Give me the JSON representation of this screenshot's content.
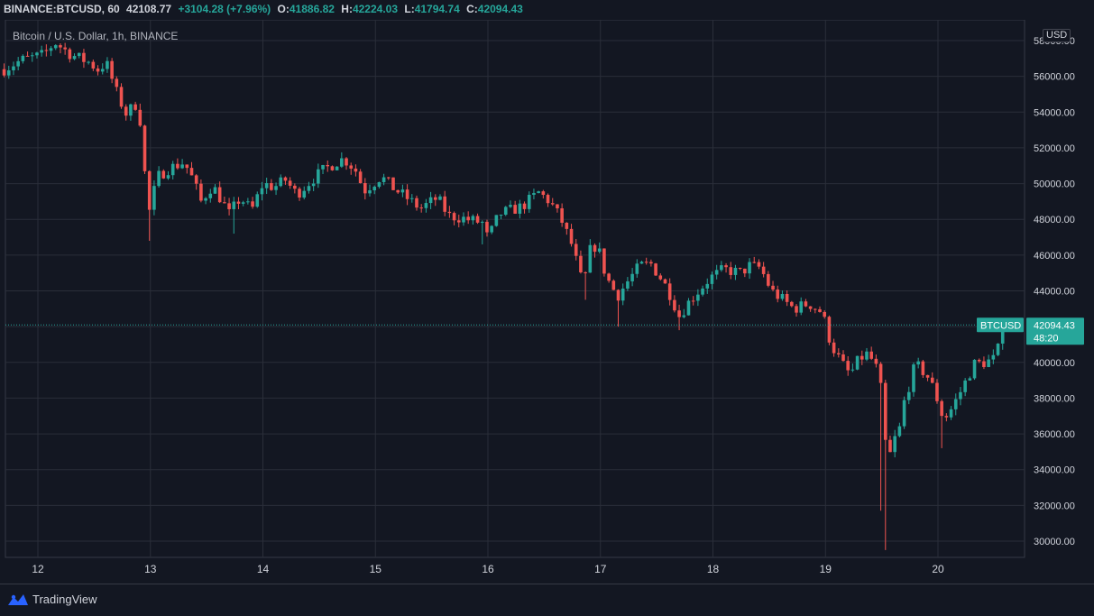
{
  "header": {
    "symbol": "BINANCE:BTCUSD, 60",
    "last": "42108.77",
    "change": "+3104.28 (+7.96%)",
    "o_label": "O:",
    "o_value": "41886.82",
    "h_label": "H:",
    "h_value": "42224.03",
    "l_label": "L:",
    "l_value": "41794.74",
    "c_label": "C:",
    "c_value": "42094.43"
  },
  "chart_title": "Bitcoin / U.S. Dollar, 1h, BINANCE",
  "unit_label": "USD",
  "price_tag": {
    "symbol": "BTCUSD",
    "price": "42094.43",
    "countdown": "48:20"
  },
  "footer": {
    "brand": "TradingView"
  },
  "colors": {
    "up": "#26a69a",
    "down": "#ef5350",
    "background": "#131722",
    "grid": "#2a2e39",
    "text": "#d1d4dc"
  },
  "chart_data": {
    "type": "candlestick",
    "title": "Bitcoin / U.S. Dollar, 1h, BINANCE",
    "ylabel": "USD",
    "ylim": [
      29000,
      59000
    ],
    "y_ticks": [
      "30000.00",
      "32000.00",
      "34000.00",
      "36000.00",
      "38000.00",
      "40000.00",
      "42000.00",
      "44000.00",
      "46000.00",
      "48000.00",
      "50000.00",
      "52000.00",
      "54000.00",
      "56000.00",
      "58000.00"
    ],
    "x_ticks": [
      {
        "label": "12",
        "day": 12
      },
      {
        "label": "13",
        "day": 13
      },
      {
        "label": "14",
        "day": 14
      },
      {
        "label": "15",
        "day": 15
      },
      {
        "label": "16",
        "day": 16
      },
      {
        "label": "17",
        "day": 17
      },
      {
        "label": "18",
        "day": 18
      },
      {
        "label": "19",
        "day": 19
      },
      {
        "label": "20",
        "day": 20
      }
    ],
    "start_day": 11.7,
    "end_day": 20.58,
    "current_price": 42094.43,
    "path": [
      [
        11.7,
        56400
      ],
      [
        11.85,
        56900
      ],
      [
        12.05,
        57200
      ],
      [
        12.15,
        57900
      ],
      [
        12.3,
        57200
      ],
      [
        12.45,
        56800
      ],
      [
        12.55,
        56300
      ],
      [
        12.6,
        56900
      ],
      [
        12.7,
        55100
      ],
      [
        12.78,
        53900
      ],
      [
        12.88,
        54500
      ],
      [
        12.93,
        52800
      ],
      [
        12.96,
        49500
      ],
      [
        13.0,
        48200
      ],
      [
        13.05,
        50300
      ],
      [
        13.15,
        50800
      ],
      [
        13.3,
        51200
      ],
      [
        13.38,
        50200
      ],
      [
        13.45,
        49000
      ],
      [
        13.55,
        49900
      ],
      [
        13.62,
        49200
      ],
      [
        13.7,
        48300
      ],
      [
        13.8,
        49200
      ],
      [
        13.9,
        48500
      ],
      [
        14.0,
        50000
      ],
      [
        14.1,
        49800
      ],
      [
        14.2,
        50200
      ],
      [
        14.3,
        49400
      ],
      [
        14.45,
        50300
      ],
      [
        14.55,
        50800
      ],
      [
        14.65,
        51200
      ],
      [
        14.72,
        51400
      ],
      [
        14.82,
        50800
      ],
      [
        14.9,
        49600
      ],
      [
        15.05,
        50400
      ],
      [
        15.15,
        49800
      ],
      [
        15.3,
        49100
      ],
      [
        15.4,
        48600
      ],
      [
        15.55,
        49200
      ],
      [
        15.65,
        48200
      ],
      [
        15.75,
        48100
      ],
      [
        15.95,
        47800
      ],
      [
        16.0,
        46900
      ],
      [
        16.1,
        48300
      ],
      [
        16.3,
        48700
      ],
      [
        16.45,
        49500
      ],
      [
        16.55,
        49000
      ],
      [
        16.65,
        48000
      ],
      [
        16.75,
        46500
      ],
      [
        16.8,
        45300
      ],
      [
        16.85,
        44200
      ],
      [
        16.9,
        46200
      ],
      [
        16.97,
        46600
      ],
      [
        17.05,
        44800
      ],
      [
        17.15,
        43700
      ],
      [
        17.25,
        44600
      ],
      [
        17.35,
        45400
      ],
      [
        17.45,
        45500
      ],
      [
        17.55,
        44600
      ],
      [
        17.62,
        43800
      ],
      [
        17.7,
        42600
      ],
      [
        17.8,
        43500
      ],
      [
        17.9,
        44200
      ],
      [
        17.97,
        44700
      ],
      [
        18.1,
        45200
      ],
      [
        18.25,
        45000
      ],
      [
        18.32,
        45400
      ],
      [
        18.42,
        45300
      ],
      [
        18.52,
        44000
      ],
      [
        18.62,
        43500
      ],
      [
        18.72,
        43000
      ],
      [
        18.85,
        43300
      ],
      [
        18.97,
        42800
      ],
      [
        19.05,
        41000
      ],
      [
        19.15,
        39900
      ],
      [
        19.22,
        39300
      ],
      [
        19.3,
        40200
      ],
      [
        19.38,
        40500
      ],
      [
        19.45,
        39700
      ],
      [
        19.5,
        38300
      ],
      [
        19.55,
        34100
      ],
      [
        19.6,
        35600
      ],
      [
        19.65,
        36000
      ],
      [
        19.7,
        37800
      ],
      [
        19.8,
        39900
      ],
      [
        19.9,
        39300
      ],
      [
        19.97,
        38400
      ],
      [
        20.05,
        36800
      ],
      [
        20.12,
        37400
      ],
      [
        20.22,
        38600
      ],
      [
        20.32,
        39900
      ],
      [
        20.42,
        40000
      ],
      [
        20.5,
        40200
      ],
      [
        20.55,
        41000
      ],
      [
        20.58,
        42094
      ]
    ],
    "spikes": [
      {
        "day": 13.0,
        "low": 46800
      },
      {
        "day": 13.75,
        "low": 47200
      },
      {
        "day": 15.95,
        "low": 46600
      },
      {
        "day": 16.85,
        "low": 43500
      },
      {
        "day": 17.15,
        "low": 42000
      },
      {
        "day": 17.7,
        "low": 41800
      },
      {
        "day": 19.5,
        "low": 31700
      },
      {
        "day": 19.55,
        "low": 29500
      },
      {
        "day": 20.05,
        "low": 35200
      }
    ]
  }
}
